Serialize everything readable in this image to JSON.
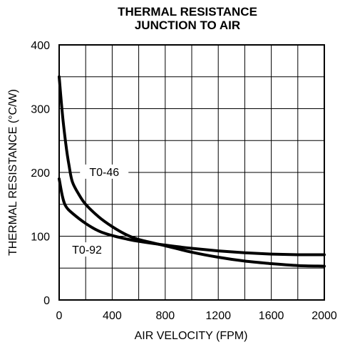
{
  "chart_data": {
    "type": "line",
    "title_lines": [
      "THERMAL RESISTANCE",
      "JUNCTION TO AIR"
    ],
    "xlabel": "AIR VELOCITY (FPM)",
    "ylabel": "THERMAL RESISTANCE (°C/W)",
    "xlim": [
      0,
      2000
    ],
    "ylim": [
      0,
      400
    ],
    "xticks": [
      0,
      400,
      800,
      1200,
      1600,
      2000
    ],
    "yticks": [
      0,
      100,
      200,
      300,
      400
    ],
    "x_gridlines": [
      0,
      200,
      400,
      600,
      800,
      1000,
      1200,
      1400,
      1600,
      1800,
      2000
    ],
    "y_gridlines": [
      0,
      50,
      100,
      150,
      200,
      250,
      300,
      350,
      400
    ],
    "grid": true,
    "series": [
      {
        "name": "T0-46",
        "x": [
          0,
          25,
          50,
          75,
          100,
          150,
          200,
          300,
          400,
          500,
          600,
          800,
          1000,
          1200,
          1400,
          1600,
          1800,
          2000
        ],
        "y": [
          350,
          290,
          245,
          210,
          185,
          165,
          150,
          130,
          115,
          103,
          95,
          85,
          75,
          67,
          61,
          57,
          54,
          53
        ]
      },
      {
        "name": "T0-92",
        "x": [
          0,
          25,
          50,
          100,
          200,
          300,
          400,
          500,
          600,
          800,
          1000,
          1200,
          1400,
          1600,
          1800,
          2000
        ],
        "y": [
          190,
          162,
          147,
          136,
          120,
          108,
          101,
          96,
          92,
          86,
          81,
          77,
          74,
          72,
          71,
          71
        ]
      }
    ],
    "series_labels": [
      {
        "series": "T0-46",
        "x": 340,
        "y": 199
      },
      {
        "series": "T0-92",
        "x": 210,
        "y": 77
      }
    ]
  }
}
